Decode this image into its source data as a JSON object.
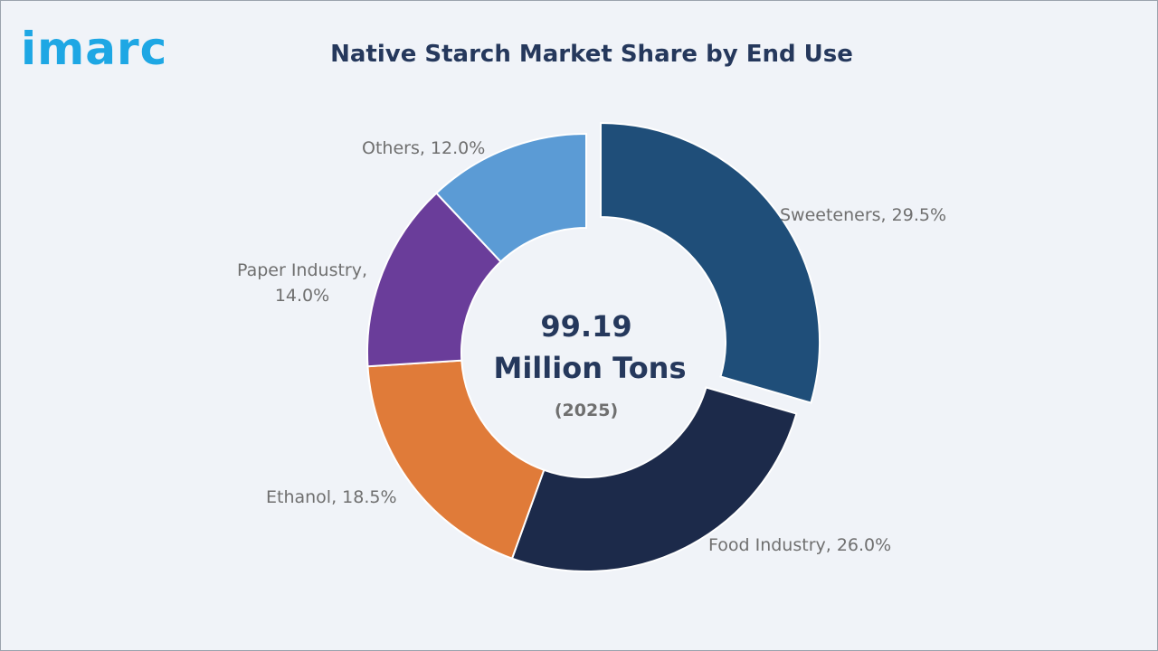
{
  "brand": {
    "logo_text": "imarc",
    "logo_color": "#1ea7e4"
  },
  "chart_data": {
    "type": "pie",
    "subtype": "donut",
    "title": "Native Starch Market Share by End Use",
    "center_text": {
      "value": "99.19",
      "unit": "Million Tons",
      "year": "(2025)"
    },
    "slices": [
      {
        "name": "Sweeteners",
        "value": 29.5,
        "label": "Sweeteners, 29.5%",
        "color": "#1f4e79",
        "exploded": true
      },
      {
        "name": "Food Industry",
        "value": 26.0,
        "label": "Food Industry, 26.0%",
        "color": "#1c2a4a",
        "exploded": false
      },
      {
        "name": "Ethanol",
        "value": 18.5,
        "label": "Ethanol, 18.5%",
        "color": "#e07b39",
        "exploded": false
      },
      {
        "name": "Paper Industry",
        "value": 14.0,
        "label_lines": [
          "Paper Industry,",
          "14.0%"
        ],
        "color": "#6a3d9a",
        "exploded": false
      },
      {
        "name": "Others",
        "value": 12.0,
        "label": "Others, 12.0%",
        "color": "#5b9bd5",
        "exploded": false
      }
    ]
  }
}
